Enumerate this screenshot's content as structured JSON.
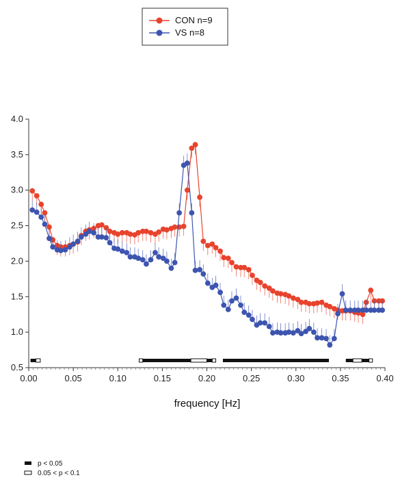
{
  "chart_data": {
    "type": "line",
    "title": "",
    "xlabel": "frequency [Hz]",
    "ylabel": "",
    "xlim": [
      0,
      0.4
    ],
    "ylim": [
      0.5,
      4.0
    ],
    "x_ticks": [
      "0.00",
      "0.05",
      "0.10",
      "0.15",
      "0.20",
      "0.25",
      "0.30",
      "0.35",
      "0.40"
    ],
    "y_ticks": [
      "0.5",
      "1.0",
      "1.5",
      "2.0",
      "2.5",
      "3.0",
      "3.5",
      "4.0"
    ],
    "grid": false,
    "legend_position": "top-center",
    "x": [
      0.004,
      0.009,
      0.014,
      0.018,
      0.023,
      0.027,
      0.032,
      0.036,
      0.041,
      0.046,
      0.05,
      0.055,
      0.059,
      0.064,
      0.068,
      0.073,
      0.078,
      0.082,
      0.087,
      0.091,
      0.096,
      0.1,
      0.105,
      0.11,
      0.114,
      0.119,
      0.123,
      0.128,
      0.132,
      0.137,
      0.142,
      0.146,
      0.151,
      0.155,
      0.16,
      0.164,
      0.169,
      0.174,
      0.178,
      0.183,
      0.187,
      0.192,
      0.196,
      0.201,
      0.206,
      0.21,
      0.215,
      0.219,
      0.224,
      0.228,
      0.233,
      0.238,
      0.242,
      0.247,
      0.251,
      0.256,
      0.26,
      0.265,
      0.27,
      0.274,
      0.279,
      0.283,
      0.288,
      0.292,
      0.297,
      0.302,
      0.306,
      0.311,
      0.315,
      0.32,
      0.324,
      0.329,
      0.334,
      0.338,
      0.343,
      0.347,
      0.352,
      0.356,
      0.361,
      0.366,
      0.37,
      0.375,
      0.379,
      0.384,
      0.388,
      0.393,
      0.397
    ],
    "series": [
      {
        "name": "CON n=9",
        "color": "#e8432d",
        "values": [
          2.99,
          2.92,
          2.8,
          2.68,
          2.48,
          2.3,
          2.22,
          2.2,
          2.2,
          2.22,
          2.24,
          2.27,
          2.36,
          2.42,
          2.44,
          2.46,
          2.5,
          2.51,
          2.47,
          2.42,
          2.4,
          2.38,
          2.4,
          2.4,
          2.38,
          2.37,
          2.4,
          2.42,
          2.42,
          2.4,
          2.38,
          2.41,
          2.45,
          2.44,
          2.46,
          2.48,
          2.48,
          2.49,
          3.0,
          3.59,
          3.64,
          2.9,
          2.28,
          2.22,
          2.24,
          2.19,
          2.14,
          2.05,
          2.04,
          1.98,
          1.92,
          1.91,
          1.91,
          1.88,
          1.8,
          1.73,
          1.7,
          1.65,
          1.62,
          1.58,
          1.55,
          1.54,
          1.53,
          1.51,
          1.48,
          1.46,
          1.42,
          1.42,
          1.4,
          1.4,
          1.41,
          1.42,
          1.38,
          1.36,
          1.33,
          1.31,
          1.3,
          1.3,
          1.3,
          1.28,
          1.27,
          1.25,
          1.42,
          1.59,
          1.44,
          1.44,
          1.44
        ]
      },
      {
        "name": "VS n=8",
        "color": "#3d55b0",
        "values": [
          2.72,
          2.69,
          2.62,
          2.52,
          2.32,
          2.2,
          2.16,
          2.15,
          2.16,
          2.2,
          2.24,
          2.28,
          2.34,
          2.38,
          2.42,
          2.4,
          2.34,
          2.34,
          2.33,
          2.26,
          2.18,
          2.17,
          2.14,
          2.12,
          2.06,
          2.06,
          2.04,
          2.02,
          1.96,
          2.02,
          2.12,
          2.06,
          2.04,
          2.0,
          1.9,
          1.98,
          2.68,
          3.35,
          3.38,
          2.68,
          1.87,
          1.88,
          1.82,
          1.69,
          1.63,
          1.66,
          1.56,
          1.38,
          1.32,
          1.44,
          1.48,
          1.38,
          1.28,
          1.24,
          1.18,
          1.1,
          1.13,
          1.13,
          1.08,
          0.99,
          1.0,
          0.99,
          0.99,
          1.0,
          0.99,
          1.02,
          0.98,
          1.01,
          1.05,
          1.0,
          0.92,
          0.92,
          0.91,
          0.82,
          0.91,
          1.26,
          1.54,
          1.31,
          1.31,
          1.31,
          1.31,
          1.31,
          1.31,
          1.31,
          1.31,
          1.31,
          1.31
        ]
      }
    ],
    "significance_bar": {
      "segments": [
        {
          "from": 0.002,
          "to": 0.008,
          "level": "p < 0.05"
        },
        {
          "from": 0.008,
          "to": 0.013,
          "level": "0.05 < p < 0.1"
        },
        {
          "from": 0.124,
          "to": 0.128,
          "level": "0.05 < p < 0.1"
        },
        {
          "from": 0.128,
          "to": 0.182,
          "level": "p < 0.05"
        },
        {
          "from": 0.182,
          "to": 0.2,
          "level": "0.05 < p < 0.1"
        },
        {
          "from": 0.2,
          "to": 0.206,
          "level": "p < 0.05"
        },
        {
          "from": 0.206,
          "to": 0.21,
          "level": "0.05 < p < 0.1"
        },
        {
          "from": 0.218,
          "to": 0.337,
          "level": "p < 0.05"
        },
        {
          "from": 0.356,
          "to": 0.364,
          "level": "p < 0.05"
        },
        {
          "from": 0.364,
          "to": 0.374,
          "level": "0.05 < p < 0.1"
        },
        {
          "from": 0.374,
          "to": 0.382,
          "level": "p < 0.05"
        },
        {
          "from": 0.382,
          "to": 0.386,
          "level": "0.05 < p < 0.1"
        }
      ]
    },
    "sig_legend": [
      {
        "label": "p < 0.05",
        "style": "filled"
      },
      {
        "label": "0.05 < p < 0.1",
        "style": "open"
      }
    ]
  }
}
